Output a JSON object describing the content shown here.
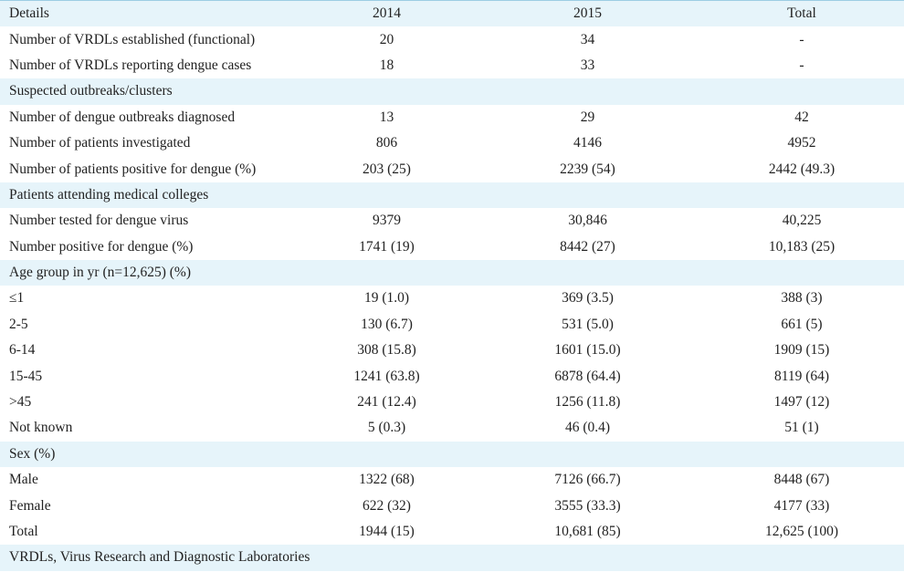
{
  "header": [
    "Details",
    "2014",
    "2015",
    "Total"
  ],
  "rows": [
    {
      "type": "data",
      "label": "Number of VRDLs established (functional)",
      "v2014": "20",
      "v2015": "34",
      "total": "-"
    },
    {
      "type": "data",
      "label": "Number of VRDLs reporting dengue cases",
      "v2014": "18",
      "v2015": "33",
      "total": "-"
    },
    {
      "type": "section",
      "label": "Suspected outbreaks/clusters"
    },
    {
      "type": "data",
      "label": "Number of dengue outbreaks diagnosed",
      "v2014": "13",
      "v2015": "29",
      "total": "42"
    },
    {
      "type": "data",
      "label": "Number of patients investigated",
      "v2014": "806",
      "v2015": "4146",
      "total": "4952"
    },
    {
      "type": "data",
      "label": "Number of patients positive for dengue (%)",
      "v2014": "203 (25)",
      "v2015": "2239 (54)",
      "total": "2442 (49.3)"
    },
    {
      "type": "section",
      "label": "Patients attending medical colleges"
    },
    {
      "type": "data",
      "label": "Number tested for dengue virus",
      "v2014": "9379",
      "v2015": "30,846",
      "total": "40,225"
    },
    {
      "type": "data",
      "label": "Number positive for dengue (%)",
      "v2014": "1741 (19)",
      "v2015": "8442 (27)",
      "total": "10,183 (25)"
    },
    {
      "type": "section",
      "label": "Age group in yr (n=12,625) (%)"
    },
    {
      "type": "data",
      "label": "≤1",
      "v2014": "19 (1.0)",
      "v2015": "369 (3.5)",
      "total": "388 (3)"
    },
    {
      "type": "data",
      "label": "2-5",
      "v2014": "130 (6.7)",
      "v2015": "531 (5.0)",
      "total": "661 (5)"
    },
    {
      "type": "data",
      "label": "6-14",
      "v2014": "308 (15.8)",
      "v2015": "1601 (15.0)",
      "total": "1909 (15)"
    },
    {
      "type": "data",
      "label": "15-45",
      "v2014": "1241 (63.8)",
      "v2015": "6878 (64.4)",
      "total": "8119 (64)"
    },
    {
      "type": "data",
      "label": ">45",
      "v2014": "241 (12.4)",
      "v2015": "1256 (11.8)",
      "total": "1497 (12)"
    },
    {
      "type": "data",
      "label": "Not known",
      "v2014": "5 (0.3)",
      "v2015": "46 (0.4)",
      "total": "51 (1)"
    },
    {
      "type": "section",
      "label": "Sex (%)"
    },
    {
      "type": "data",
      "label": "Male",
      "v2014": "1322 (68)",
      "v2015": "7126 (66.7)",
      "total": "8448 (67)"
    },
    {
      "type": "data",
      "label": "Female",
      "v2014": "622 (32)",
      "v2015": "3555 (33.3)",
      "total": "4177 (33)"
    },
    {
      "type": "data",
      "label": "Total",
      "v2014": "1944 (15)",
      "v2015": "10,681 (85)",
      "total": "12,625 (100)"
    }
  ],
  "footnote": "VRDLs, Virus Research and Diagnostic Laboratories",
  "colors": {
    "band": "#e6f4fa",
    "top_rule": "#9ccde3",
    "text": "#222222"
  }
}
